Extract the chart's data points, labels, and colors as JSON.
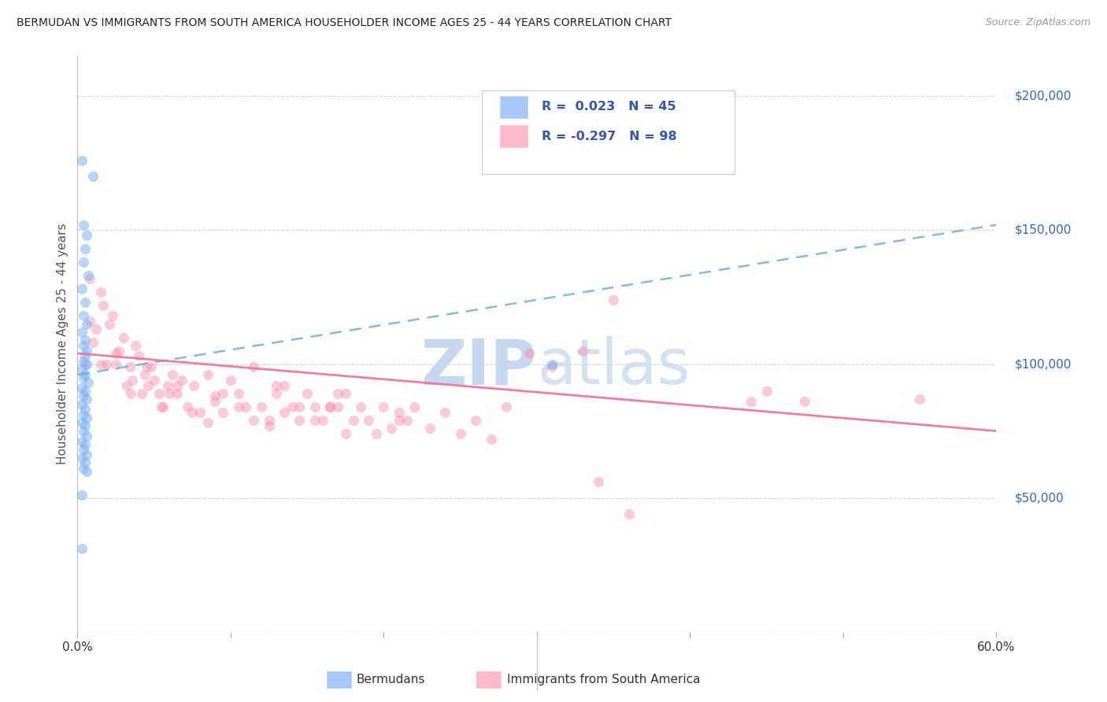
{
  "title": "BERMUDAN VS IMMIGRANTS FROM SOUTH AMERICA HOUSEHOLDER INCOME AGES 25 - 44 YEARS CORRELATION CHART",
  "source": "Source: ZipAtlas.com",
  "ylabel": "Householder Income Ages 25 - 44 years",
  "xlim_min": 0.0,
  "xlim_max": 0.6,
  "ylim_min": 0,
  "ylim_max": 215000,
  "yticks": [
    0,
    50000,
    100000,
    150000,
    200000
  ],
  "ytick_labels": [
    "",
    "$50,000",
    "$100,000",
    "$150,000",
    "$200,000"
  ],
  "xtick_positions": [
    0.0,
    0.1,
    0.2,
    0.3,
    0.4,
    0.5,
    0.6
  ],
  "xtick_labels": [
    "0.0%",
    "",
    "",
    "",
    "",
    "",
    "60.0%"
  ],
  "bermuda_R": 0.023,
  "bermuda_N": 45,
  "south_america_R": -0.297,
  "south_america_N": 98,
  "blue_color": "#7EB3F5",
  "pink_color": "#F98BAB",
  "blue_line_color": "#6BAEE8",
  "pink_line_color": "#F07090",
  "title_color": "#222222",
  "legend_text_color": "#3355BB",
  "axis_right_color": "#3366CC",
  "grid_color": "#CCCCCC",
  "watermark_color": "#D0DDEF",
  "bg_color": "#FFFFFF",
  "legend_label_blue": "Bermudans",
  "legend_label_pink": "Immigrants from South America",
  "blue_line_x0": 0.0,
  "blue_line_y0": 96000,
  "blue_line_x1": 0.6,
  "blue_line_y1": 152000,
  "pink_line_x0": 0.0,
  "pink_line_y0": 104000,
  "pink_line_x1": 0.6,
  "pink_line_y1": 75000,
  "blue_x": [
    0.003,
    0.01,
    0.004,
    0.006,
    0.005,
    0.004,
    0.007,
    0.003,
    0.005,
    0.004,
    0.006,
    0.003,
    0.005,
    0.004,
    0.006,
    0.005,
    0.004,
    0.006,
    0.003,
    0.005,
    0.004,
    0.007,
    0.003,
    0.005,
    0.004,
    0.006,
    0.003,
    0.005,
    0.004,
    0.006,
    0.003,
    0.005,
    0.004,
    0.006,
    0.003,
    0.005,
    0.004,
    0.006,
    0.003,
    0.005,
    0.004,
    0.006,
    0.003,
    0.003,
    0.31
  ],
  "blue_y": [
    176000,
    170000,
    152000,
    148000,
    143000,
    138000,
    133000,
    128000,
    123000,
    118000,
    115000,
    112000,
    109000,
    107000,
    105000,
    103000,
    101000,
    100000,
    98000,
    96000,
    95000,
    93000,
    91000,
    90000,
    88000,
    87000,
    85000,
    83000,
    81000,
    80000,
    78000,
    77000,
    75000,
    73000,
    71000,
    70000,
    68000,
    66000,
    65000,
    63000,
    61000,
    60000,
    51000,
    31000,
    100000
  ],
  "pink_x": [
    0.005,
    0.008,
    0.01,
    0.012,
    0.015,
    0.017,
    0.019,
    0.021,
    0.023,
    0.025,
    0.027,
    0.03,
    0.032,
    0.034,
    0.036,
    0.038,
    0.04,
    0.042,
    0.044,
    0.046,
    0.048,
    0.05,
    0.053,
    0.056,
    0.059,
    0.062,
    0.065,
    0.068,
    0.072,
    0.076,
    0.08,
    0.085,
    0.09,
    0.095,
    0.1,
    0.105,
    0.11,
    0.115,
    0.12,
    0.125,
    0.13,
    0.135,
    0.14,
    0.145,
    0.15,
    0.155,
    0.16,
    0.165,
    0.17,
    0.175,
    0.18,
    0.185,
    0.19,
    0.195,
    0.2,
    0.205,
    0.21,
    0.215,
    0.22,
    0.23,
    0.24,
    0.25,
    0.26,
    0.27,
    0.28,
    0.295,
    0.31,
    0.33,
    0.35,
    0.008,
    0.015,
    0.025,
    0.035,
    0.045,
    0.055,
    0.065,
    0.075,
    0.085,
    0.095,
    0.105,
    0.115,
    0.125,
    0.135,
    0.145,
    0.155,
    0.165,
    0.175,
    0.06,
    0.09,
    0.13,
    0.17,
    0.21,
    0.45,
    0.475,
    0.34,
    0.44,
    0.36,
    0.55
  ],
  "pink_y": [
    100000,
    116000,
    108000,
    113000,
    100000,
    122000,
    100000,
    115000,
    118000,
    100000,
    105000,
    110000,
    92000,
    99000,
    94000,
    107000,
    103000,
    89000,
    96000,
    92000,
    99000,
    94000,
    89000,
    84000,
    92000,
    96000,
    89000,
    94000,
    84000,
    92000,
    82000,
    78000,
    86000,
    82000,
    94000,
    89000,
    84000,
    99000,
    84000,
    79000,
    89000,
    82000,
    84000,
    79000,
    89000,
    84000,
    79000,
    84000,
    89000,
    74000,
    79000,
    84000,
    79000,
    74000,
    84000,
    76000,
    82000,
    79000,
    84000,
    76000,
    82000,
    74000,
    79000,
    72000,
    84000,
    104000,
    99000,
    105000,
    124000,
    132000,
    127000,
    104000,
    89000,
    99000,
    84000,
    92000,
    82000,
    96000,
    89000,
    84000,
    79000,
    77000,
    92000,
    84000,
    79000,
    84000,
    89000,
    89000,
    88000,
    92000,
    84000,
    79000,
    90000,
    86000,
    56000,
    86000,
    44000,
    87000
  ]
}
